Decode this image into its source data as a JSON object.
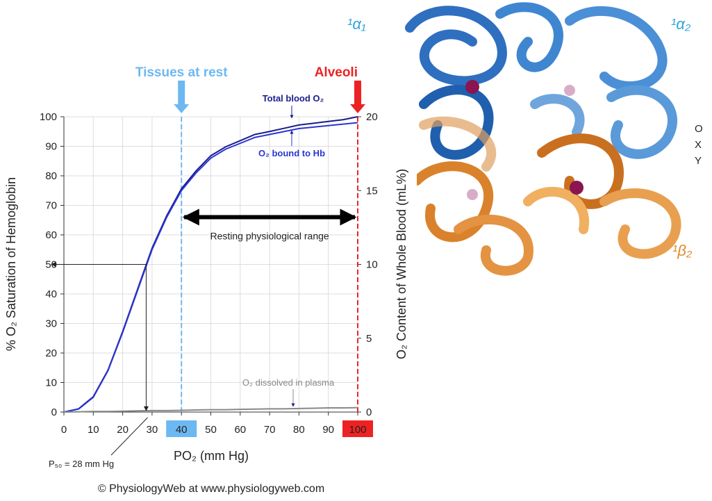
{
  "chart_data": {
    "type": "line",
    "x": [
      0,
      5,
      10,
      15,
      20,
      25,
      30,
      35,
      40,
      45,
      50,
      55,
      60,
      65,
      70,
      75,
      80,
      85,
      90,
      95,
      100
    ],
    "series": [
      {
        "name": "Total blood O₂",
        "color": "#1b1b8f",
        "values": [
          0,
          1.1,
          5.2,
          14.2,
          27.3,
          41.4,
          55.5,
          66.5,
          75.6,
          81.7,
          86.8,
          89.8,
          91.9,
          94,
          95,
          96.1,
          97.2,
          97.8,
          98.4,
          99,
          100
        ]
      },
      {
        "name": "O₂ bound to Hb",
        "color": "#2a35d0",
        "values": [
          0,
          1,
          5,
          14,
          27,
          41,
          55,
          66,
          75,
          81,
          86,
          89,
          91,
          93,
          94,
          95,
          96,
          96.5,
          97,
          97.5,
          98
        ]
      },
      {
        "name": "O₂ dissolved in plasma",
        "color": "#888888",
        "values": [
          0,
          0.1,
          0.2,
          0.2,
          0.3,
          0.4,
          0.5,
          0.5,
          0.6,
          0.7,
          0.8,
          0.8,
          0.9,
          1,
          1.1,
          1.1,
          1.2,
          1.3,
          1.4,
          1.4,
          1.5
        ]
      }
    ],
    "x_label": "PO₂ (mm Hg)",
    "y_label": "% O₂ Saturation of Hemoglobin",
    "y2_label": "O₂ Content of Whole Blood (mL%)",
    "xlim": [
      0,
      100
    ],
    "xticks": [
      0,
      10,
      20,
      30,
      40,
      50,
      60,
      70,
      80,
      90,
      100
    ],
    "ylim": [
      0,
      100
    ],
    "yticks": [
      0,
      10,
      20,
      30,
      40,
      50,
      60,
      70,
      80,
      90,
      100
    ],
    "y2lim": [
      0,
      20
    ],
    "y2ticks": [
      0,
      5,
      10,
      15,
      20
    ],
    "grid": true,
    "markers": [
      {
        "label": "Tissues at rest",
        "x": 40,
        "color": "#6cb8f2"
      },
      {
        "label": "Alveoli",
        "x": 100,
        "color": "#ee2222"
      }
    ],
    "range": {
      "label": "Resting physiological range",
      "from": 40,
      "to": 100,
      "y": 66
    },
    "p50": {
      "label": "P₅₀ = 28 mm Hg",
      "x": 28,
      "y": 50
    },
    "credit": "© PhysiologyWeb at www.physiologyweb.com"
  },
  "structure_labels": [
    "¹α₁",
    "¹α₂",
    "¹β₂",
    "O",
    "X",
    "Y"
  ]
}
